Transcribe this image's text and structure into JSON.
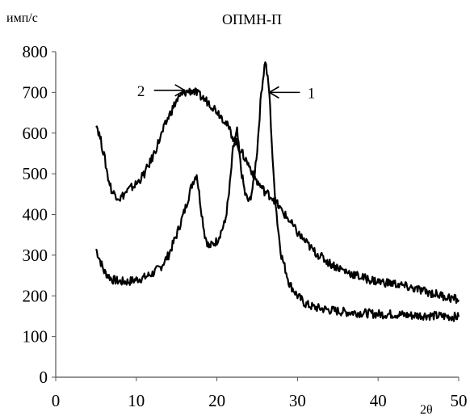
{
  "chart_data": {
    "type": "line",
    "title": "ОПМН-П",
    "ylabel": "имп/с",
    "xlabel": "2θ",
    "xlim": [
      0,
      50
    ],
    "ylim": [
      0,
      800
    ],
    "x_ticks": [
      "0",
      "10",
      "20",
      "30",
      "40",
      "50"
    ],
    "y_ticks": [
      "0",
      "100",
      "200",
      "300",
      "400",
      "500",
      "600",
      "700",
      "800"
    ],
    "grid": false,
    "legend": "none",
    "series": [
      {
        "name": "1",
        "x": [
          5,
          6,
          7,
          8,
          9,
          10,
          11,
          12,
          13,
          14,
          15,
          16,
          17,
          17.5,
          18,
          18.5,
          19,
          20,
          21,
          21.5,
          22,
          22.5,
          23,
          23.5,
          24,
          24.5,
          25,
          25.5,
          26,
          26.5,
          27,
          27.5,
          28,
          29,
          30,
          31,
          32,
          34,
          36,
          38,
          40,
          42,
          44,
          46,
          48,
          50
        ],
        "values": [
          315,
          260,
          240,
          235,
          235,
          240,
          245,
          255,
          270,
          300,
          350,
          410,
          480,
          500,
          420,
          350,
          320,
          335,
          380,
          450,
          560,
          605,
          510,
          450,
          430,
          470,
          560,
          700,
          780,
          700,
          500,
          380,
          300,
          230,
          200,
          180,
          172,
          165,
          160,
          158,
          155,
          155,
          152,
          152,
          150,
          148
        ]
      },
      {
        "name": "2",
        "x": [
          5,
          5.5,
          6,
          6.5,
          7,
          8,
          9,
          10,
          11,
          12,
          13,
          14,
          15,
          16,
          17,
          18,
          19,
          20,
          21,
          22,
          23,
          24,
          25,
          26,
          27,
          28,
          29,
          30,
          32,
          34,
          36,
          38,
          40,
          42,
          44,
          46,
          48,
          50
        ],
        "values": [
          625,
          590,
          545,
          490,
          455,
          440,
          460,
          475,
          500,
          540,
          590,
          640,
          680,
          700,
          705,
          690,
          675,
          655,
          630,
          590,
          555,
          520,
          480,
          455,
          440,
          410,
          385,
          355,
          310,
          280,
          260,
          245,
          235,
          230,
          220,
          210,
          200,
          190
        ]
      }
    ],
    "annotations": [
      {
        "text": "1",
        "points_to_x": 26.5,
        "points_to_y": 700
      },
      {
        "text": "2",
        "points_to_x": 16,
        "points_to_y": 705
      }
    ]
  }
}
